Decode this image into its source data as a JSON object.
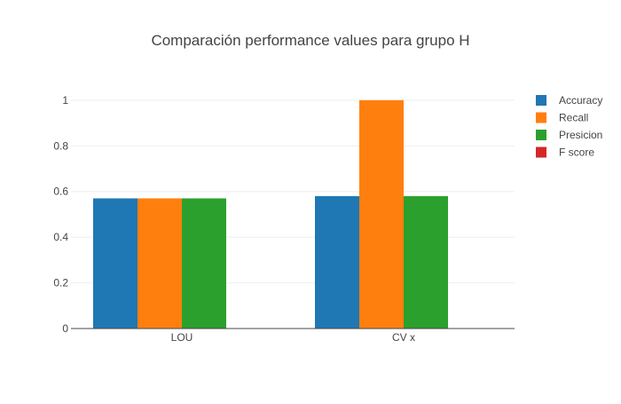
{
  "chart_data": {
    "type": "bar",
    "title": "Comparación performance values para grupo H",
    "xlabel": "",
    "ylabel": "",
    "categories": [
      "LOU",
      "CV x"
    ],
    "series": [
      {
        "name": "Accuracy",
        "color": "#1f77b4",
        "values": [
          0.57,
          0.58
        ]
      },
      {
        "name": "Recall",
        "color": "#ff7f0e",
        "values": [
          0.57,
          1.0
        ]
      },
      {
        "name": "Presicion",
        "color": "#2ca02c",
        "values": [
          0.57,
          0.58
        ]
      },
      {
        "name": "F score",
        "color": "#d62728",
        "values": [
          null,
          null
        ]
      }
    ],
    "ylim": [
      0,
      1.05
    ],
    "yticks": [
      0,
      0.2,
      0.4,
      0.6,
      0.8,
      1
    ],
    "ytick_labels": [
      "0",
      "0.2",
      "0.4",
      "0.6",
      "0.8",
      "1"
    ],
    "grid": true,
    "legend_position": "top-right"
  }
}
